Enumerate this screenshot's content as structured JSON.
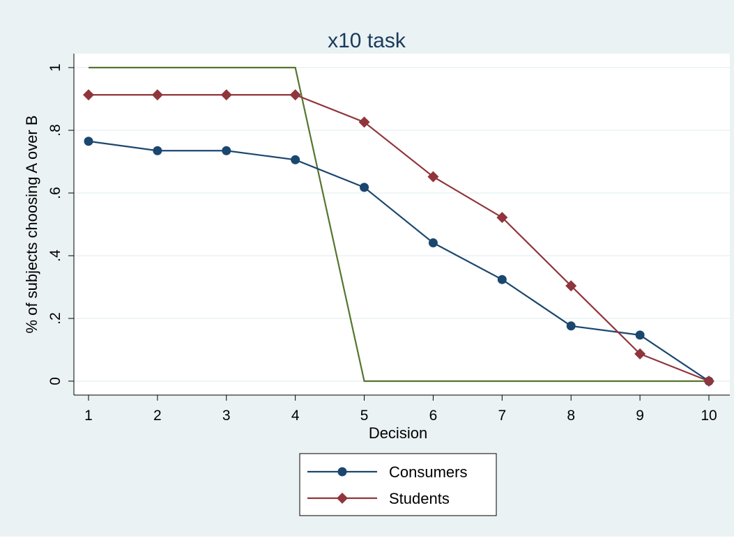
{
  "chart_data": {
    "type": "line",
    "title": "x10 task",
    "xlabel": "Decision",
    "ylabel": "% of subjects choosing A over B",
    "x": [
      1,
      2,
      3,
      4,
      5,
      6,
      7,
      8,
      9,
      10
    ],
    "xlim": [
      1,
      10
    ],
    "ylim": [
      0,
      1
    ],
    "xticks": [
      "1",
      "2",
      "3",
      "4",
      "5",
      "6",
      "7",
      "8",
      "9",
      "10"
    ],
    "yticks": [
      {
        "value": 0,
        "label": "0"
      },
      {
        "value": 0.2,
        "label": ".2"
      },
      {
        "value": 0.4,
        "label": ".4"
      },
      {
        "value": 0.6,
        "label": ".6"
      },
      {
        "value": 0.8,
        "label": ".8"
      },
      {
        "value": 1,
        "label": "1"
      }
    ],
    "grid": true,
    "legend_position": "bottom",
    "series": [
      {
        "name": "Consumers",
        "marker": "circle",
        "color": "#1a476f",
        "values": [
          0.765,
          0.735,
          0.735,
          0.706,
          0.618,
          0.441,
          0.324,
          0.176,
          0.147,
          0
        ]
      },
      {
        "name": "Students",
        "marker": "diamond",
        "color": "#90353b",
        "values": [
          0.913,
          0.913,
          0.913,
          0.913,
          0.826,
          0.652,
          0.522,
          0.304,
          0.087,
          0
        ]
      },
      {
        "marker": "none",
        "color": "#55752f",
        "values": [
          1,
          1,
          1,
          1,
          0,
          0,
          0,
          0,
          0,
          0
        ]
      }
    ]
  },
  "colors": {
    "outer_background": "#eaf2f3",
    "plot_background": "#ffffff",
    "grid": "#eaf2f3",
    "title": "#1a3a5c"
  }
}
